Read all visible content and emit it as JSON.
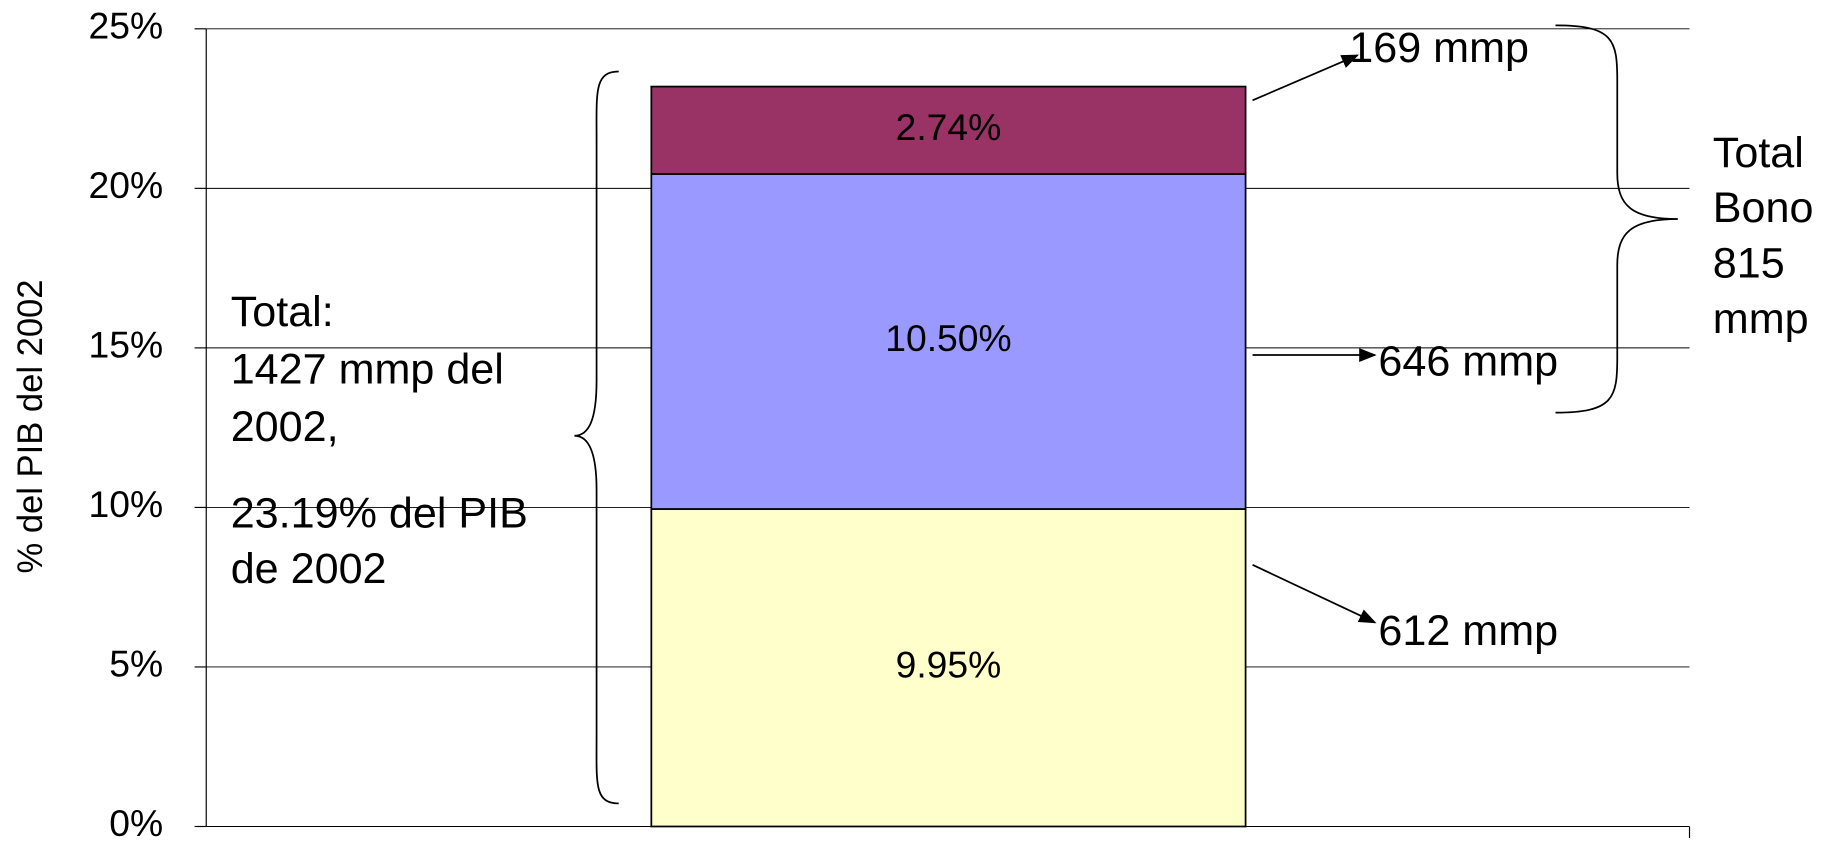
{
  "chart_data": {
    "type": "stacked_bar",
    "categories": [
      null
    ],
    "series": [
      {
        "color": "#ffffcc",
        "values": [
          9.95
        ],
        "value_labels": [
          "9.95%"
        ]
      },
      {
        "color": "#9999ff",
        "values": [
          10.5
        ],
        "value_labels": [
          "10.50%"
        ]
      },
      {
        "color": "#993366",
        "values": [
          2.74
        ],
        "value_labels": [
          "2.74%"
        ]
      }
    ],
    "y_label": "% del PIB del 2002",
    "ylim": [
      0,
      25
    ],
    "yticks": [
      {
        "value": 0,
        "label": "0%"
      },
      {
        "value": 5,
        "label": "5%"
      },
      {
        "value": 10,
        "label": "10%"
      },
      {
        "value": 15,
        "label": "15%"
      },
      {
        "value": 20,
        "label": "20%"
      },
      {
        "value": 25,
        "label": "25%"
      }
    ],
    "grid": true,
    "annotations": {
      "segments": [
        "612 mmp",
        "646 mmp",
        "169 mmp"
      ],
      "total": [
        "Total:",
        "1427 mmp del",
        "2002,",
        "23.19% del PIB",
        "de 2002"
      ],
      "bono": [
        "Total",
        "Bono",
        "815",
        "mmp"
      ]
    }
  }
}
